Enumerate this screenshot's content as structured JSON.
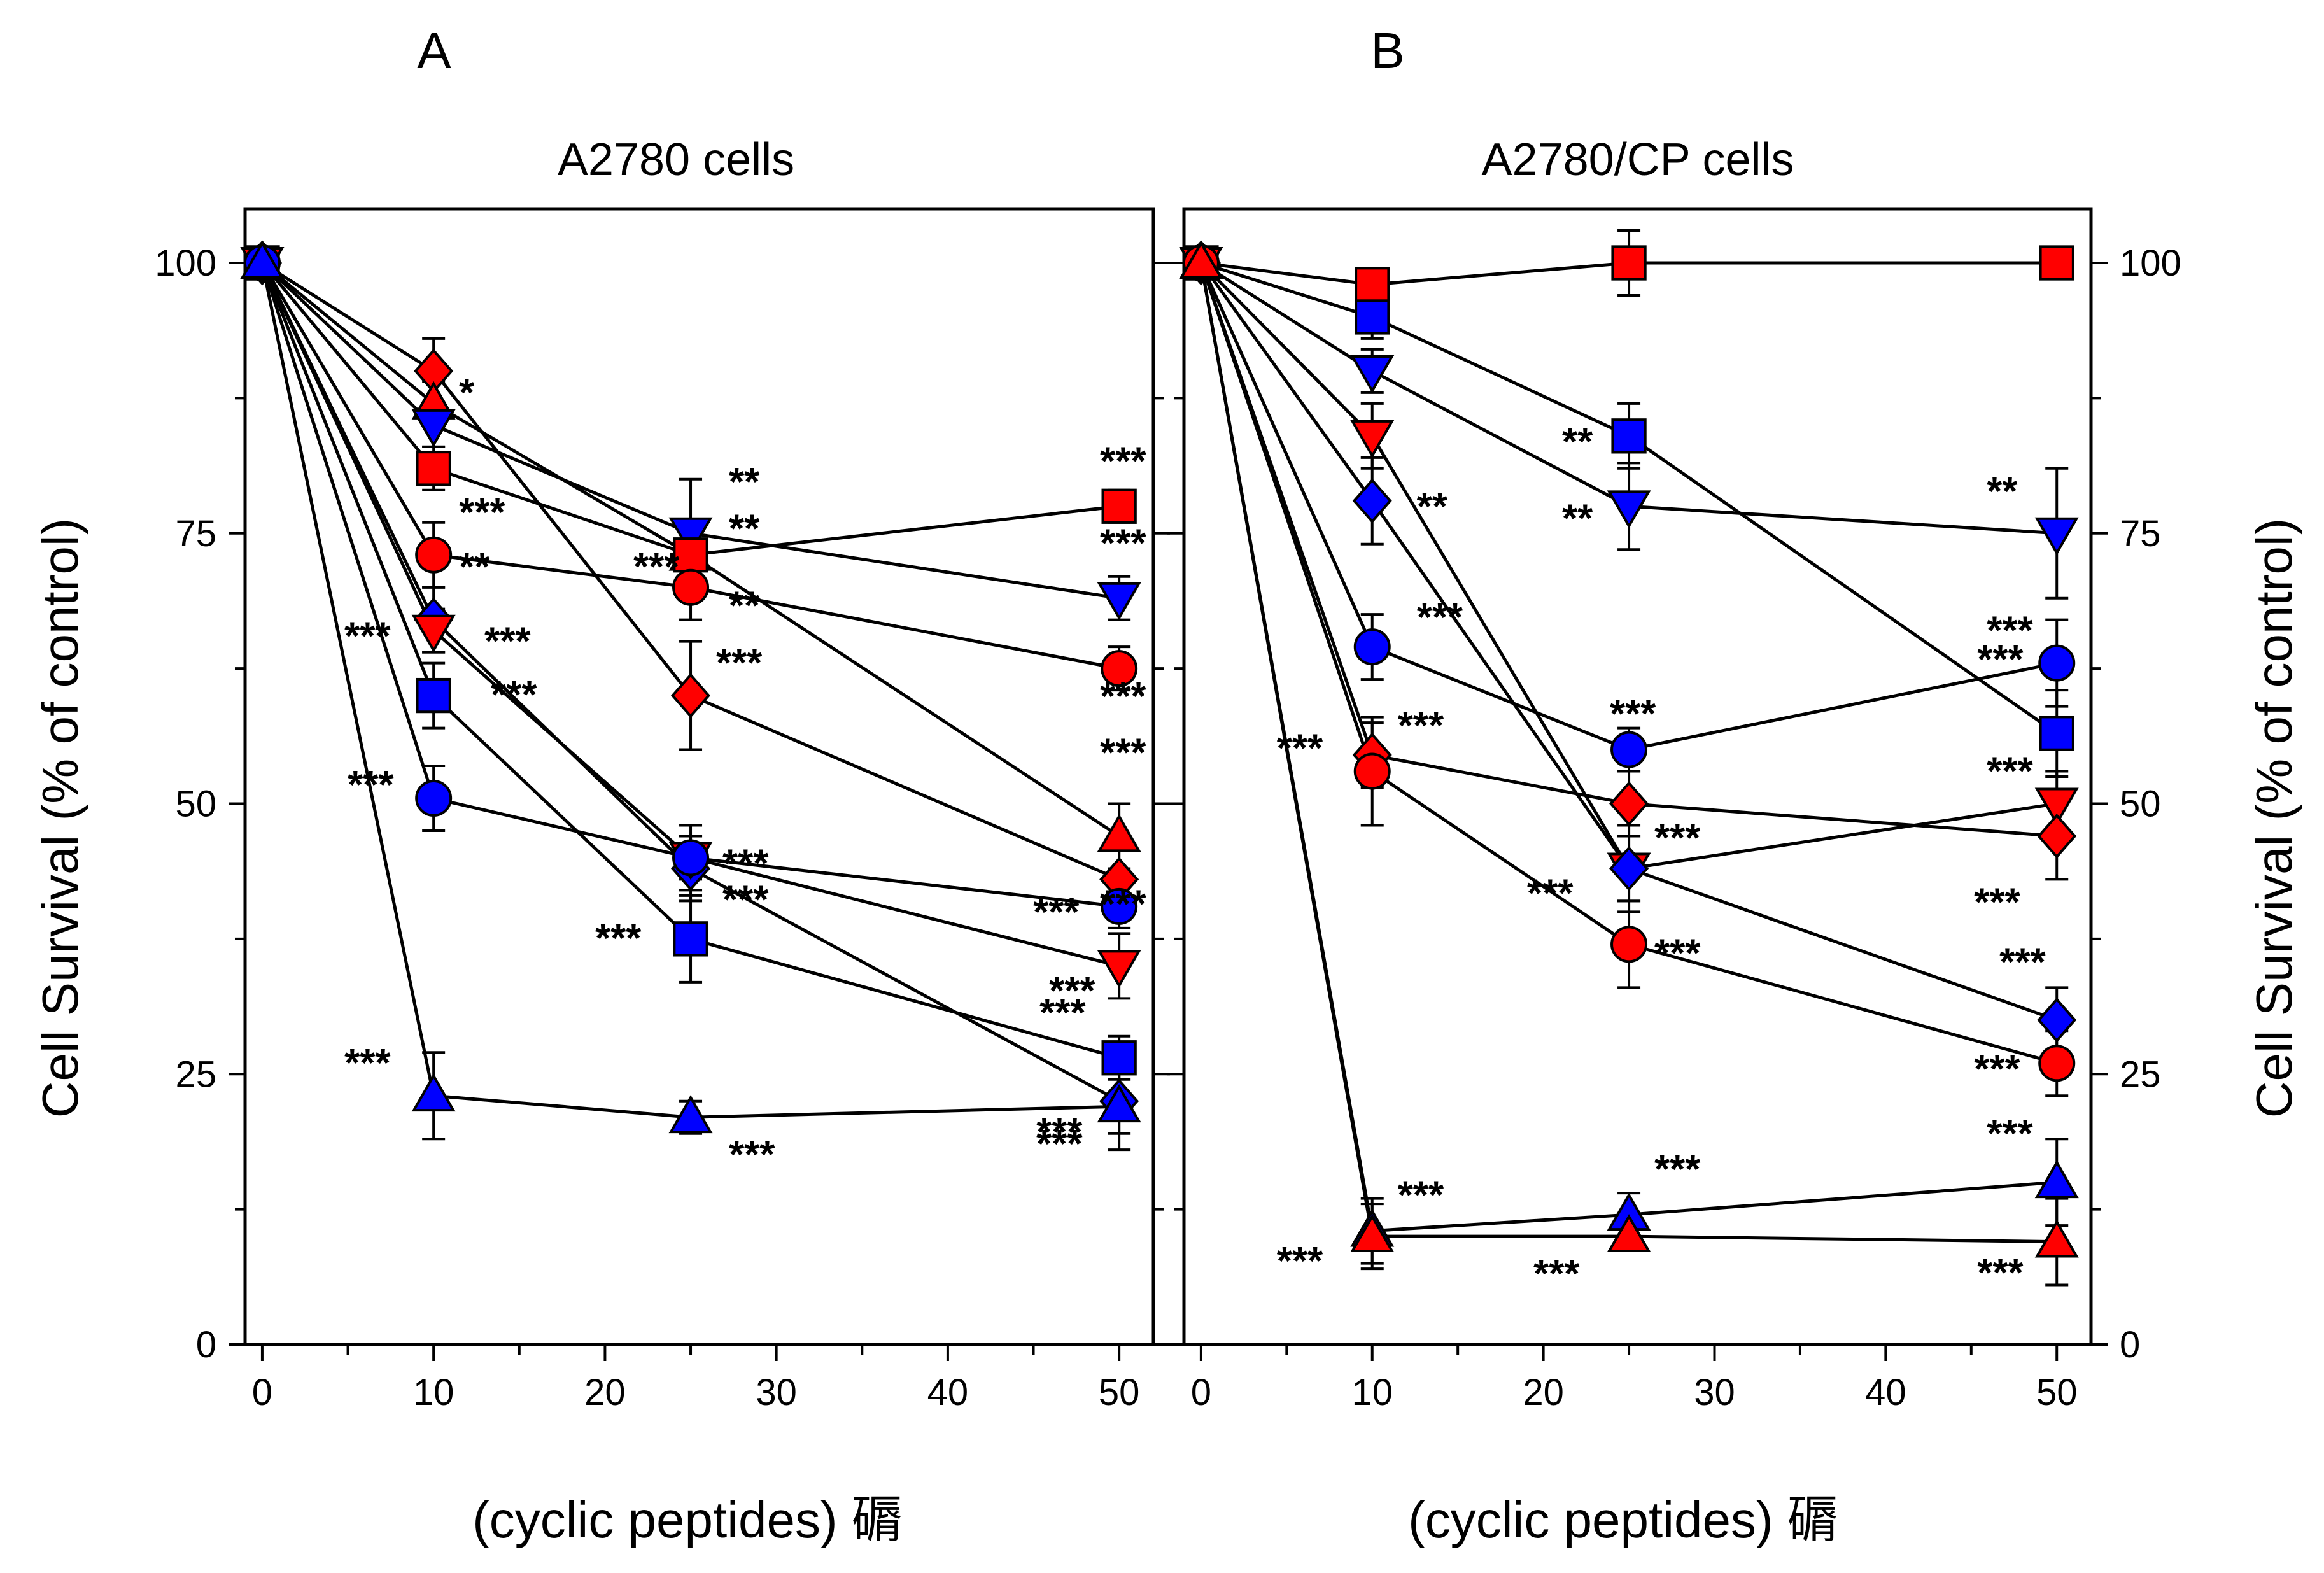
{
  "chart_data": [
    {
      "type": "line",
      "panel_letter": "A",
      "title": "A2780 cells",
      "xlabel": "(cyclic peptides) 磭",
      "ylabel": "Cell Survival (% of control)",
      "xlim": [
        -1,
        52
      ],
      "ylim": [
        0,
        100
      ],
      "x_ticks": [
        "0",
        "10",
        "20",
        "30",
        "40",
        "50"
      ],
      "y_ticks": [
        "0",
        "25",
        "50",
        "75",
        "100"
      ],
      "x": [
        0,
        10,
        25,
        50
      ],
      "series": [
        {
          "name": "red-diamond",
          "marker": "diamond",
          "color": "#ff0000",
          "values": [
            100,
            90,
            60,
            43
          ],
          "errors": [
            0,
            3,
            5,
            3
          ],
          "labels": [
            "",
            "*",
            "***",
            "***"
          ]
        },
        {
          "name": "red-up-triangle",
          "marker": "triangle-up",
          "color": "#ff0000",
          "values": [
            100,
            87,
            73,
            47
          ],
          "errors": [
            0,
            2,
            3,
            3
          ],
          "labels": [
            "",
            "",
            "**",
            "***"
          ]
        },
        {
          "name": "blue-down-triangle",
          "marker": "triangle-down",
          "color": "#0000ff",
          "values": [
            100,
            85,
            75,
            69
          ],
          "errors": [
            0,
            2,
            5,
            2
          ],
          "labels": [
            "",
            "",
            "**",
            "***"
          ]
        },
        {
          "name": "red-square",
          "marker": "square",
          "color": "#ff0000",
          "values": [
            100,
            81,
            73,
            77.5
          ],
          "errors": [
            0,
            2,
            3,
            1.5
          ],
          "labels": [
            "",
            "***",
            "***",
            "***"
          ]
        },
        {
          "name": "red-circle",
          "marker": "circle",
          "color": "#ff0000",
          "values": [
            100,
            73,
            70,
            62.5
          ],
          "errors": [
            0,
            3,
            3,
            2
          ],
          "labels": [
            "",
            "**",
            "**",
            "***"
          ]
        },
        {
          "name": "blue-diamond",
          "marker": "diamond",
          "color": "#0000ff",
          "values": [
            100,
            67,
            44,
            22.5
          ],
          "errors": [
            0,
            3,
            3,
            3
          ],
          "labels": [
            "",
            "***",
            "***",
            "***"
          ]
        },
        {
          "name": "blue-square",
          "marker": "square",
          "color": "#0000ff",
          "values": [
            100,
            60,
            37.5,
            26.5
          ],
          "errors": [
            0,
            3,
            4,
            2
          ],
          "labels": [
            "",
            "***",
            "***",
            "***"
          ]
        },
        {
          "name": "red-down-triangle",
          "marker": "triangle-down",
          "color": "#ff0000",
          "values": [
            100,
            66,
            45,
            35
          ],
          "errors": [
            0,
            2,
            3,
            3
          ],
          "labels": [
            "",
            "***",
            "",
            "***"
          ]
        },
        {
          "name": "blue-circle",
          "marker": "circle",
          "color": "#0000ff",
          "values": [
            100,
            50.5,
            45,
            40.5
          ],
          "errors": [
            0,
            3,
            2,
            2
          ],
          "labels": [
            "",
            "***",
            "***",
            "***"
          ]
        },
        {
          "name": "blue-up-triangle",
          "marker": "triangle-up",
          "color": "#0000ff",
          "values": [
            100,
            23,
            21,
            22
          ],
          "errors": [
            0,
            4,
            1.5,
            4
          ],
          "labels": [
            "",
            "***",
            "***",
            "***"
          ]
        }
      ]
    },
    {
      "type": "line",
      "panel_letter": "B",
      "title": "A2780/CP cells",
      "xlabel": "(cyclic peptides) 磭",
      "ylabel": "Cell Survival (% of control)",
      "xlim": [
        -1,
        52
      ],
      "ylim": [
        0,
        100
      ],
      "x_ticks": [
        "0",
        "10",
        "20",
        "30",
        "40",
        "50"
      ],
      "y_ticks": [
        "0",
        "25",
        "50",
        "75",
        "100"
      ],
      "x": [
        0,
        10,
        25,
        50
      ],
      "series": [
        {
          "name": "red-square",
          "marker": "square",
          "color": "#ff0000",
          "values": [
            100,
            98,
            100,
            100
          ],
          "errors": [
            0,
            1,
            3,
            0
          ],
          "labels": [
            "",
            "",
            "",
            ""
          ]
        },
        {
          "name": "blue-square",
          "marker": "square",
          "color": "#0000ff",
          "values": [
            100,
            95,
            84,
            56.5
          ],
          "errors": [
            0,
            2,
            3,
            4
          ],
          "labels": [
            "",
            "",
            "**",
            "***"
          ]
        },
        {
          "name": "blue-down-triangle",
          "marker": "triangle-down",
          "color": "#0000ff",
          "values": [
            100,
            90,
            77.5,
            75
          ],
          "errors": [
            0,
            2,
            4,
            6
          ],
          "labels": [
            "",
            "",
            "**",
            "**"
          ]
        },
        {
          "name": "red-down-triangle",
          "marker": "triangle-down",
          "color": "#ff0000",
          "values": [
            100,
            84,
            44,
            50
          ],
          "errors": [
            0,
            3,
            3,
            3
          ],
          "labels": [
            "",
            "",
            "",
            "***"
          ]
        },
        {
          "name": "blue-diamond",
          "marker": "diamond",
          "color": "#0000ff",
          "values": [
            100,
            78,
            44,
            30
          ],
          "errors": [
            0,
            4,
            4,
            3
          ],
          "labels": [
            "",
            "**",
            "***",
            "***"
          ]
        },
        {
          "name": "blue-circle",
          "marker": "circle",
          "color": "#0000ff",
          "values": [
            100,
            64.5,
            55,
            63
          ],
          "errors": [
            0,
            3,
            2,
            4
          ],
          "labels": [
            "",
            "***",
            "***",
            "***"
          ]
        },
        {
          "name": "red-diamond",
          "marker": "diamond",
          "color": "#ff0000",
          "values": [
            100,
            54.5,
            50,
            47
          ],
          "errors": [
            0,
            3,
            3,
            4
          ],
          "labels": [
            "",
            "***",
            "***",
            "***"
          ]
        },
        {
          "name": "red-circle",
          "marker": "circle",
          "color": "#ff0000",
          "values": [
            100,
            53,
            37,
            26
          ],
          "errors": [
            0,
            5,
            4,
            3
          ],
          "labels": [
            "",
            "***",
            "***",
            "***"
          ]
        },
        {
          "name": "blue-up-triangle",
          "marker": "triangle-up",
          "color": "#0000ff",
          "values": [
            100,
            10.5,
            12,
            15
          ],
          "errors": [
            0,
            3,
            2,
            4
          ],
          "labels": [
            "",
            "***",
            "***",
            "***"
          ]
        },
        {
          "name": "red-up-triangle",
          "marker": "triangle-up",
          "color": "#ff0000",
          "values": [
            100,
            10,
            10,
            9.5
          ],
          "errors": [
            0,
            3,
            1,
            4
          ],
          "labels": [
            "",
            "***",
            "***",
            "***"
          ]
        }
      ]
    }
  ]
}
